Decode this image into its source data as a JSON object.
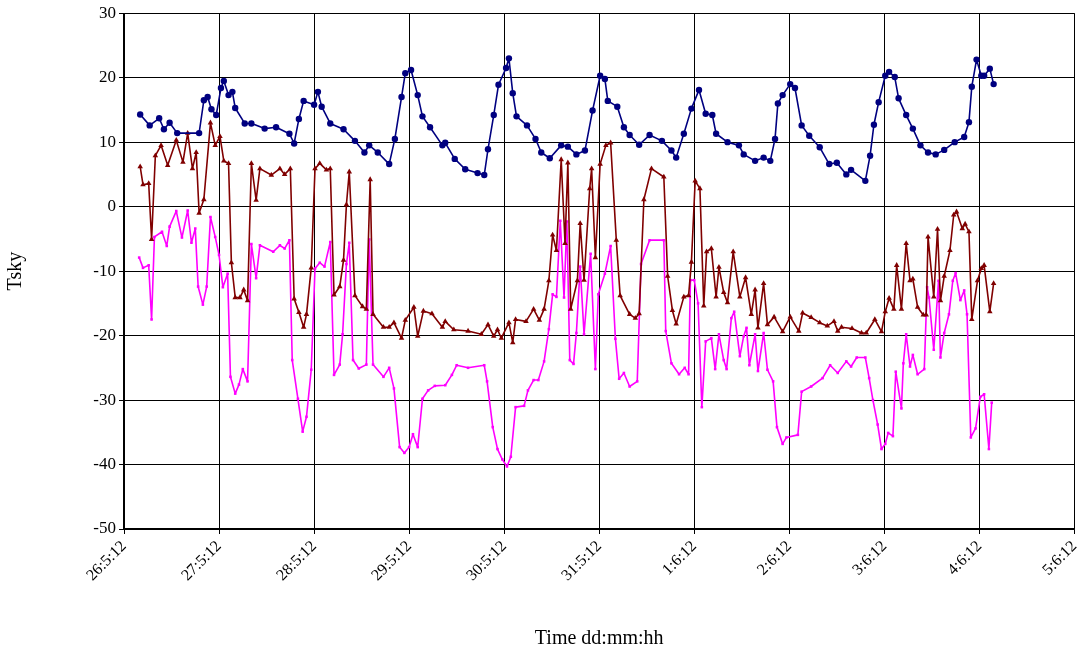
{
  "chart_data": {
    "type": "line",
    "xlabel": "Time dd:mm:hh",
    "ylabel": "Tsky",
    "xlim": [
      "--05-26T12:00",
      "--06-05T12:00"
    ],
    "xticks": [
      {
        "value": "--05-26T12:00",
        "label": "26:5:12"
      },
      {
        "value": "--05-27T12:00",
        "label": "27:5:12"
      },
      {
        "value": "--05-28T12:00",
        "label": "28:5:12"
      },
      {
        "value": "--05-29T12:00",
        "label": "29:5:12"
      },
      {
        "value": "--05-30T12:00",
        "label": "30:5:12"
      },
      {
        "value": "--05-31T12:00",
        "label": "31:5:12"
      },
      {
        "value": "--06-01T12:00",
        "label": "1:6:12"
      },
      {
        "value": "--06-02T12:00",
        "label": "2:6:12"
      },
      {
        "value": "--06-03T12:00",
        "label": "3:6:12"
      },
      {
        "value": "--06-04T12:00",
        "label": "4:6:12"
      },
      {
        "value": "--06-05T12:00",
        "label": "5:6:12"
      }
    ],
    "ylim": [
      -50,
      30
    ],
    "yticks": [
      -50,
      -40,
      -30,
      -20,
      -10,
      0,
      10,
      20,
      30
    ],
    "grid": true,
    "line_style": "solid",
    "series": [
      {
        "color": "#000080",
        "marker": "circle",
        "x": [
          "--05-26T16:05",
          "--05-26T18:29",
          "--05-26T20:53",
          "--05-26T22:05",
          "--05-26T23:31",
          "--05-27T01:26",
          "--05-27T06:58",
          "--05-27T08:10",
          "--05-27T09:07",
          "--05-27T10:05",
          "--05-27T11:17",
          "--05-27T12:29",
          "--05-27T13:12",
          "--05-27T14:24",
          "--05-27T15:22",
          "--05-27T16:05",
          "--05-27T18:29",
          "--05-27T20:10",
          "--05-27T23:31",
          "--05-28T02:24",
          "--05-28T05:46",
          "--05-28T06:58",
          "--05-28T08:10",
          "--05-28T09:22",
          "--05-28T12:00",
          "--05-28T12:58",
          "--05-28T13:55",
          "--05-28T16:05",
          "--05-28T19:26",
          "--05-28T22:19",
          "--05-29T00:43",
          "--05-29T01:55",
          "--05-29T04:05",
          "--05-29T06:58",
          "--05-29T08:24",
          "--05-29T10:05",
          "--05-29T11:02",
          "--05-29T12:29",
          "--05-29T14:10",
          "--05-29T15:22",
          "--05-29T17:17",
          "--05-29T20:24",
          "--05-29T21:07",
          "--05-29T23:31",
          "--05-30T02:10",
          "--05-30T05:17",
          "--05-30T06:58",
          "--05-30T07:55",
          "--05-30T09:22",
          "--05-30T10:34",
          "--05-30T12:29",
          "--05-30T13:12",
          "--05-30T14:10",
          "--05-30T15:07",
          "--05-30T17:46",
          "--05-30T19:55",
          "--05-30T21:22",
          "--05-30T23:31",
          "--05-31T02:24",
          "--05-31T04:05",
          "--05-31T06:14",
          "--05-31T08:24",
          "--05-31T10:19",
          "--05-31T12:14",
          "--05-31T13:26",
          "--05-31T14:10",
          "--05-31T16:34",
          "--05-31T18:14",
          "--05-31T19:41",
          "--05-31T22:05",
          "--06-01T00:43",
          "--06-01T03:50",
          "--06-01T06:14",
          "--06-01T07:26",
          "--06-01T09:22",
          "--06-01T11:17",
          "--06-01T13:12",
          "--06-01T14:53",
          "--06-01T16:34",
          "--06-01T17:31",
          "--06-01T20:24",
          "--06-01T23:17",
          "--06-02T00:29",
          "--06-02T03:22",
          "--06-02T05:31",
          "--06-02T07:12",
          "--06-02T08:24",
          "--06-02T09:07",
          "--06-02T10:19",
          "--06-02T12:14",
          "--06-02T13:26",
          "--06-02T15:07",
          "--06-02T17:02",
          "--06-02T19:41",
          "--06-02T22:05",
          "--06-03T00:00",
          "--06-03T02:24",
          "--06-03T03:36",
          "--06-03T07:12",
          "--06-03T08:24",
          "--06-03T09:22",
          "--06-03T10:34",
          "--06-03T12:14",
          "--06-03T13:12",
          "--06-03T14:38",
          "--06-03T15:36",
          "--06-03T17:31",
          "--06-03T19:12",
          "--06-03T21:07",
          "--06-03T23:02",
          "--06-04T00:58",
          "--06-04T03:07",
          "--06-04T05:46",
          "--06-04T08:10",
          "--06-04T09:22",
          "--06-04T10:05",
          "--06-04T11:17",
          "--06-04T12:29",
          "--06-04T13:12",
          "--06-04T14:38",
          "--06-04T15:36"
        ],
        "values": [
          14.3,
          12.6,
          13.7,
          12.0,
          13.0,
          11.4,
          11.4,
          16.5,
          17.0,
          15.1,
          14.2,
          18.4,
          19.5,
          17.3,
          17.8,
          15.3,
          12.9,
          12.9,
          12.1,
          12.3,
          11.3,
          9.8,
          13.6,
          16.4,
          15.8,
          17.8,
          15.5,
          12.9,
          12.0,
          10.2,
          8.4,
          9.5,
          8.4,
          6.6,
          10.5,
          17.0,
          20.7,
          21.2,
          17.3,
          14.0,
          12.3,
          9.5,
          9.9,
          7.4,
          5.8,
          5.2,
          4.9,
          8.9,
          14.2,
          18.9,
          21.5,
          23.0,
          17.6,
          14.0,
          12.6,
          10.5,
          8.4,
          7.5,
          9.5,
          9.3,
          8.1,
          8.7,
          14.9,
          20.3,
          19.8,
          16.4,
          15.5,
          12.3,
          11.1,
          9.6,
          11.1,
          10.2,
          8.7,
          7.6,
          11.3,
          15.2,
          18.1,
          14.4,
          14.2,
          11.3,
          10.0,
          9.5,
          8.1,
          7.1,
          7.6,
          7.1,
          10.5,
          16.0,
          17.3,
          19.0,
          18.4,
          12.6,
          11.0,
          9.2,
          6.6,
          6.8,
          5.0,
          5.7,
          4.0,
          7.9,
          12.7,
          16.2,
          20.3,
          20.9,
          20.1,
          16.8,
          14.2,
          12.1,
          9.5,
          8.4,
          8.1,
          8.8,
          10.0,
          10.8,
          13.1,
          18.6,
          22.8,
          20.3,
          20.3,
          21.4,
          19.0
        ]
      },
      {
        "color": "#800000",
        "marker": "triangle",
        "x": [
          "--05-26T16:05",
          "--05-26T16:48",
          "--05-26T18:14",
          "--05-26T18:58",
          "--05-26T19:55",
          "--05-26T21:22",
          "--05-26T23:02",
          "--05-27T01:12",
          "--05-27T02:53",
          "--05-27T04:05",
          "--05-27T05:17",
          "--05-27T06:14",
          "--05-27T06:58",
          "--05-27T08:10",
          "--05-27T09:50",
          "--05-27T11:02",
          "--05-27T12:14",
          "--05-27T13:12",
          "--05-27T14:24",
          "--05-27T15:07",
          "--05-27T16:05",
          "--05-27T17:17",
          "--05-27T18:14",
          "--05-27T19:12",
          "--05-27T20:10",
          "--05-27T21:22",
          "--05-27T22:19",
          "--05-28T01:12",
          "--05-28T03:22",
          "--05-28T04:34",
          "--05-28T06:00",
          "--05-28T06:58",
          "--05-28T08:10",
          "--05-28T09:22",
          "--05-28T10:05",
          "--05-28T11:17",
          "--05-28T12:14",
          "--05-28T13:26",
          "--05-28T15:07",
          "--05-28T16:05",
          "--05-28T17:02",
          "--05-28T18:29",
          "--05-28T19:26",
          "--05-28T20:10",
          "--05-28T20:53",
          "--05-28T22:19",
          "--05-29T00:14",
          "--05-29T01:12",
          "--05-29T02:10",
          "--05-29T02:53",
          "--05-29T05:31",
          "--05-29T06:58",
          "--05-29T08:10",
          "--05-29T10:05",
          "--05-29T11:02",
          "--05-29T13:12",
          "--05-29T14:10",
          "--05-29T15:36",
          "--05-29T17:46",
          "--05-29T20:24",
          "--05-29T21:07",
          "--05-29T23:17",
          "--05-30T02:53",
          "--05-30T06:14",
          "--05-30T07:55",
          "--05-30T09:22",
          "--05-30T10:19",
          "--05-30T11:17",
          "--05-30T13:12",
          "--05-30T14:10",
          "--05-30T14:53",
          "--05-30T17:31",
          "--05-30T19:26",
          "--05-30T20:53",
          "--05-30T22:05",
          "--05-30T23:17",
          "--05-31T00:14",
          "--05-31T01:12",
          "--05-31T02:24",
          "--05-31T03:22",
          "--05-31T04:05",
          "--05-31T04:48",
          "--05-31T06:29",
          "--05-31T07:12",
          "--05-31T08:10",
          "--05-31T09:36",
          "--05-31T10:05",
          "--05-31T11:02",
          "--05-31T12:14",
          "--05-31T13:41",
          "--05-31T14:53",
          "--05-31T16:19",
          "--05-31T17:17",
          "--05-31T19:41",
          "--05-31T21:07",
          "--05-31T22:05",
          "--05-31T23:17",
          "--06-01T01:12",
          "--06-01T04:19",
          "--06-01T05:17",
          "--06-01T06:29",
          "--06-01T07:26",
          "--06-01T09:22",
          "--06-01T10:34",
          "--06-01T11:17",
          "--06-01T12:14",
          "--06-01T13:26",
          "--06-01T14:24",
          "--06-01T15:07",
          "--06-01T16:19",
          "--06-01T17:31",
          "--06-01T18:14",
          "--06-01T19:26",
          "--06-01T20:24",
          "--06-01T21:50",
          "--06-01T23:31",
          "--06-02T00:58",
          "--06-02T02:24",
          "--06-02T03:22",
          "--06-02T04:05",
          "--06-02T05:31",
          "--06-02T06:29",
          "--06-02T08:10",
          "--06-02T10:19",
          "--06-02T12:14",
          "--06-02T14:24",
          "--06-02T15:22",
          "--06-02T17:31",
          "--06-02T19:41",
          "--06-02T21:36",
          "--06-02T23:17",
          "--06-03T00:14",
          "--06-03T01:12",
          "--06-03T03:50",
          "--06-03T06:14",
          "--06-03T07:26",
          "--06-03T09:36",
          "--06-03T11:17",
          "--06-03T12:14",
          "--06-03T13:12",
          "--06-03T14:24",
          "--06-03T15:07",
          "--06-03T16:19",
          "--06-03T17:31",
          "--06-03T18:29",
          "--06-03T19:12",
          "--06-03T20:24",
          "--06-03T21:50",
          "--06-03T22:34",
          "--06-03T23:02",
          "--06-04T00:29",
          "--06-04T01:26",
          "--06-04T02:10",
          "--06-04T03:07",
          "--06-04T04:34",
          "--06-04T05:31",
          "--06-04T06:14",
          "--06-04T07:41",
          "--06-04T08:24",
          "--06-04T09:22",
          "--06-04T10:05",
          "--06-04T11:31",
          "--06-04T12:29",
          "--06-04T13:12",
          "--06-04T14:38",
          "--06-04T15:36"
        ],
        "values": [
          6.2,
          3.4,
          3.6,
          -5.1,
          7.9,
          9.5,
          6.4,
          10.3,
          6.9,
          11.4,
          5.9,
          8.4,
          -1.0,
          1.1,
          13.0,
          9.5,
          10.9,
          7.1,
          6.7,
          -8.7,
          -14.1,
          -14.1,
          -12.9,
          -14.6,
          6.7,
          1.0,
          5.9,
          4.9,
          5.9,
          5.0,
          5.9,
          -14.3,
          -16.4,
          -18.7,
          -16.7,
          -9.5,
          5.9,
          6.7,
          5.7,
          5.9,
          -13.7,
          -12.4,
          -8.3,
          0.3,
          5.4,
          -13.8,
          -15.5,
          -15.9,
          4.2,
          -16.7,
          -18.7,
          -18.7,
          -18.0,
          -20.4,
          -17.6,
          -15.6,
          -20.1,
          -16.2,
          -16.6,
          -18.7,
          -17.8,
          -19.1,
          -19.3,
          -19.8,
          -18.3,
          -20.1,
          -19.1,
          -20.4,
          -18.0,
          -21.1,
          -17.5,
          -17.8,
          -15.9,
          -17.6,
          -15.9,
          -11.5,
          -4.4,
          -6.8,
          7.3,
          -5.7,
          6.8,
          -15.9,
          -11.5,
          -2.6,
          -11.4,
          2.8,
          5.9,
          -7.9,
          6.6,
          9.5,
          9.9,
          -5.2,
          -13.8,
          -16.7,
          -17.3,
          -16.6,
          1.1,
          5.9,
          4.6,
          -10.8,
          -16.1,
          -18.2,
          -14.0,
          -13.8,
          -8.6,
          4.0,
          2.8,
          -15.4,
          -7.0,
          -6.5,
          -14.0,
          -9.4,
          -13.3,
          -14.9,
          -7.0,
          -14.0,
          -11.0,
          -16.7,
          -12.9,
          -18.8,
          -11.9,
          -18.3,
          -17.1,
          -19.4,
          -17.1,
          -19.3,
          -16.5,
          -17.2,
          -18.0,
          -18.5,
          -17.8,
          -19.3,
          -18.7,
          -18.9,
          -19.6,
          -19.6,
          -17.5,
          -19.4,
          -16.3,
          -14.2,
          -15.9,
          -9.1,
          -15.9,
          -5.7,
          -11.5,
          -11.2,
          -15.6,
          -16.8,
          -16.8,
          -4.7,
          -14.0,
          -3.5,
          -14.6,
          -10.8,
          -6.8,
          -1.3,
          -0.8,
          -3.4,
          -2.7,
          -3.9,
          -17.5,
          -11.5,
          -9.6,
          -9.1,
          -16.3,
          -11.9
        ]
      },
      {
        "color": "#ff00ff",
        "marker": "square",
        "x": [
          "--05-26T15:50",
          "--05-26T16:48",
          "--05-26T18:14",
          "--05-26T18:58",
          "--05-26T19:41",
          "--05-26T21:36",
          "--05-26T22:48",
          "--05-26T23:31",
          "--05-27T01:12",
          "--05-27T02:38",
          "--05-27T04:05",
          "--05-27T05:02",
          "--05-27T06:00",
          "--05-27T06:43",
          "--05-27T07:55",
          "--05-27T08:53",
          "--05-27T09:50",
          "--05-27T11:02",
          "--05-27T12:00",
          "--05-27T12:58",
          "--05-27T14:10",
          "--05-27T14:53",
          "--05-27T16:05",
          "--05-27T17:02",
          "--05-27T18:00",
          "--05-27T19:12",
          "--05-27T20:10",
          "--05-27T21:22",
          "--05-27T22:19",
          "--05-28T01:41",
          "--05-28T03:22",
          "--05-28T04:34",
          "--05-28T05:46",
          "--05-28T06:29",
          "--05-28T07:55",
          "--05-28T09:07",
          "--05-28T10:05",
          "--05-28T11:17",
          "--05-28T12:14",
          "--05-28T13:26",
          "--05-28T14:38",
          "--05-28T16:05",
          "--05-28T17:02",
          "--05-28T18:29",
          "--05-28T19:12",
          "--05-28T20:10",
          "--05-28T20:53",
          "--05-28T21:50",
          "--05-28T23:17",
          "--05-29T01:12",
          "--05-29T01:55",
          "--05-29T02:53",
          "--05-29T05:31",
          "--05-29T06:58",
          "--05-29T08:10",
          "--05-29T09:36",
          "--05-29T10:48",
          "--05-29T12:00",
          "--05-29T12:58",
          "--05-29T14:10",
          "--05-29T15:22",
          "--05-29T16:48",
          "--05-29T18:29",
          "--05-29T21:07",
          "--05-29T22:48",
          "--05-30T00:00",
          "--05-30T02:53",
          "--05-30T06:58",
          "--05-30T07:41",
          "--05-30T09:07",
          "--05-30T10:19",
          "--05-30T11:31",
          "--05-30T12:43",
          "--05-30T13:41",
          "--05-30T14:53",
          "--05-30T17:02",
          "--05-30T18:00",
          "--05-30T19:26",
          "--05-30T20:38",
          "--05-30T22:05",
          "--05-30T23:17",
          "--05-31T00:14",
          "--05-31T01:12",
          "--05-31T02:10",
          "--05-31T03:07",
          "--05-31T03:50",
          "--05-31T04:34",
          "--05-31T05:31",
          "--05-31T06:14",
          "--05-31T07:12",
          "--05-31T08:10",
          "--05-31T09:50",
          "--05-31T11:02",
          "--05-31T11:46",
          "--05-31T13:26",
          "--05-31T14:53",
          "--05-31T16:05",
          "--05-31T17:02",
          "--05-31T18:14",
          "--05-31T19:41",
          "--05-31T21:36",
          "--05-31T22:34",
          "--06-01T00:43",
          "--06-01T04:19",
          "--06-01T04:48",
          "--06-01T06:14",
          "--06-01T08:10",
          "--06-01T09:36",
          "--06-01T10:34",
          "--06-01T11:02",
          "--06-01T12:00",
          "--06-01T12:58",
          "--06-01T13:55",
          "--06-01T14:53",
          "--06-01T16:19",
          "--06-01T17:17",
          "--06-01T18:14",
          "--06-01T19:26",
          "--06-01T20:10",
          "--06-01T21:22",
          "--06-01T22:05",
          "--06-01T23:31",
          "--06-02T00:29",
          "--06-02T01:12",
          "--06-02T01:55",
          "--06-02T03:22",
          "--06-02T04:05",
          "--06-02T05:31",
          "--06-02T06:29",
          "--06-02T07:55",
          "--06-02T08:53",
          "--06-02T10:19",
          "--06-02T11:17",
          "--06-02T14:10",
          "--06-02T15:07",
          "--06-02T17:31",
          "--06-02T20:24",
          "--06-02T22:19",
          "--06-03T00:14",
          "--06-03T02:24",
          "--06-03T03:36",
          "--06-03T05:02",
          "--06-03T07:12",
          "--06-03T08:10",
          "--06-03T09:07",
          "--06-03T10:19",
          "--06-03T11:17",
          "--06-03T12:14",
          "--06-03T12:58",
          "--06-03T14:10",
          "--06-03T14:53",
          "--06-03T16:19",
          "--06-03T16:48",
          "--06-03T17:31",
          "--06-03T18:29",
          "--06-03T19:12",
          "--06-03T20:24",
          "--06-03T22:05",
          "--06-03T22:48",
          "--06-03T23:17",
          "--06-04T00:29",
          "--06-04T01:41",
          "--06-04T02:10",
          "--06-04T03:07",
          "--06-04T04:19",
          "--06-04T05:17",
          "--06-04T06:00",
          "--06-04T07:12",
          "--06-04T08:10",
          "--06-04T08:53",
          "--06-04T09:50",
          "--06-04T11:02",
          "--06-04T12:14",
          "--06-04T13:12",
          "--06-04T14:24",
          "--06-04T15:07"
        ],
        "values": [
          -7.9,
          -9.5,
          -9.1,
          -17.5,
          -4.7,
          -3.9,
          -6.1,
          -3.1,
          -0.7,
          -4.8,
          -0.6,
          -5.6,
          -3.4,
          -12.4,
          -15.2,
          -12.4,
          -1.6,
          -4.7,
          -7.5,
          -12.5,
          -10.4,
          -26.4,
          -29.0,
          -27.6,
          -25.2,
          -27.1,
          -5.8,
          -11.1,
          -6.0,
          -7.0,
          -6.0,
          -6.5,
          -5.2,
          -23.8,
          -29.8,
          -34.9,
          -32.6,
          -25.3,
          -9.6,
          -8.7,
          -9.3,
          -5.5,
          -26.1,
          -24.5,
          -19.8,
          -8.9,
          -5.6,
          -23.8,
          -25.1,
          -24.5,
          -5.1,
          -24.5,
          -26.4,
          -25.0,
          -28.2,
          -37.3,
          -38.2,
          -37.3,
          -35.3,
          -37.3,
          -29.8,
          -28.5,
          -27.8,
          -27.7,
          -26.1,
          -24.6,
          -25.0,
          -24.6,
          -27.1,
          -34.2,
          -37.6,
          -39.2,
          -40.3,
          -38.8,
          -31.1,
          -30.9,
          -28.5,
          -26.9,
          -26.9,
          -24.0,
          -19.0,
          -13.6,
          -14.0,
          -2.2,
          -14.1,
          -2.3,
          -23.8,
          -24.4,
          -19.6,
          -9.3,
          -19.8,
          -7.3,
          -25.2,
          -13.6,
          -10.4,
          -6.1,
          -20.5,
          -26.7,
          -25.8,
          -27.9,
          -27.1,
          -8.9,
          -5.2,
          -5.2,
          -19.3,
          -24.3,
          -26.0,
          -25.0,
          -26.0,
          -11.4,
          -11.4,
          -15.0,
          -31.1,
          -20.9,
          -20.4,
          -25.2,
          -19.8,
          -23.8,
          -25.2,
          -17.3,
          -16.3,
          -23.2,
          -20.1,
          -18.8,
          -24.6,
          -19.8,
          -25.5,
          -19.6,
          -25.3,
          -27.1,
          -34.2,
          -36.8,
          -35.8,
          -35.4,
          -28.7,
          -27.9,
          -26.6,
          -24.6,
          -25.8,
          -24.0,
          -24.8,
          -23.4,
          -23.4,
          -26.6,
          -30.0,
          -33.8,
          -37.6,
          -36.8,
          -35.1,
          -35.6,
          -25.6,
          -31.3,
          -24.3,
          -19.8,
          -24.8,
          -23.0,
          -26.0,
          -25.2,
          -12.5,
          -14.1,
          -22.2,
          -11.5,
          -23.4,
          -19.6,
          -16.7,
          -11.5,
          -10.3,
          -14.5,
          -13.0,
          -16.7,
          -35.8,
          -34.4,
          -29.5,
          -29.1,
          -37.6,
          -30.4
        ]
      }
    ]
  }
}
